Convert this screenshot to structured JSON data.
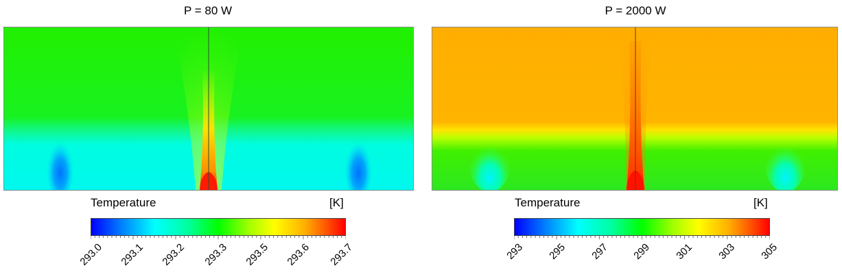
{
  "panels": [
    {
      "title": "P = 80 W",
      "colorbar": {
        "title": "Temperature",
        "unit": "[K]",
        "ticks": [
          "293.0",
          "293.1",
          "293.2",
          "293.3",
          "293.5",
          "293.6",
          "293.7"
        ]
      }
    },
    {
      "title": "P = 2000 W",
      "colorbar": {
        "title": "Temperature",
        "unit": "[K]",
        "ticks": [
          "293",
          "295",
          "297",
          "299",
          "301",
          "303",
          "305"
        ]
      }
    }
  ],
  "colors": {
    "blue": "#0000ff",
    "cyan": "#00ffff",
    "green": "#00ff00",
    "yellow": "#ffff00",
    "orange": "#ffb000",
    "red": "#ff0000"
  }
}
